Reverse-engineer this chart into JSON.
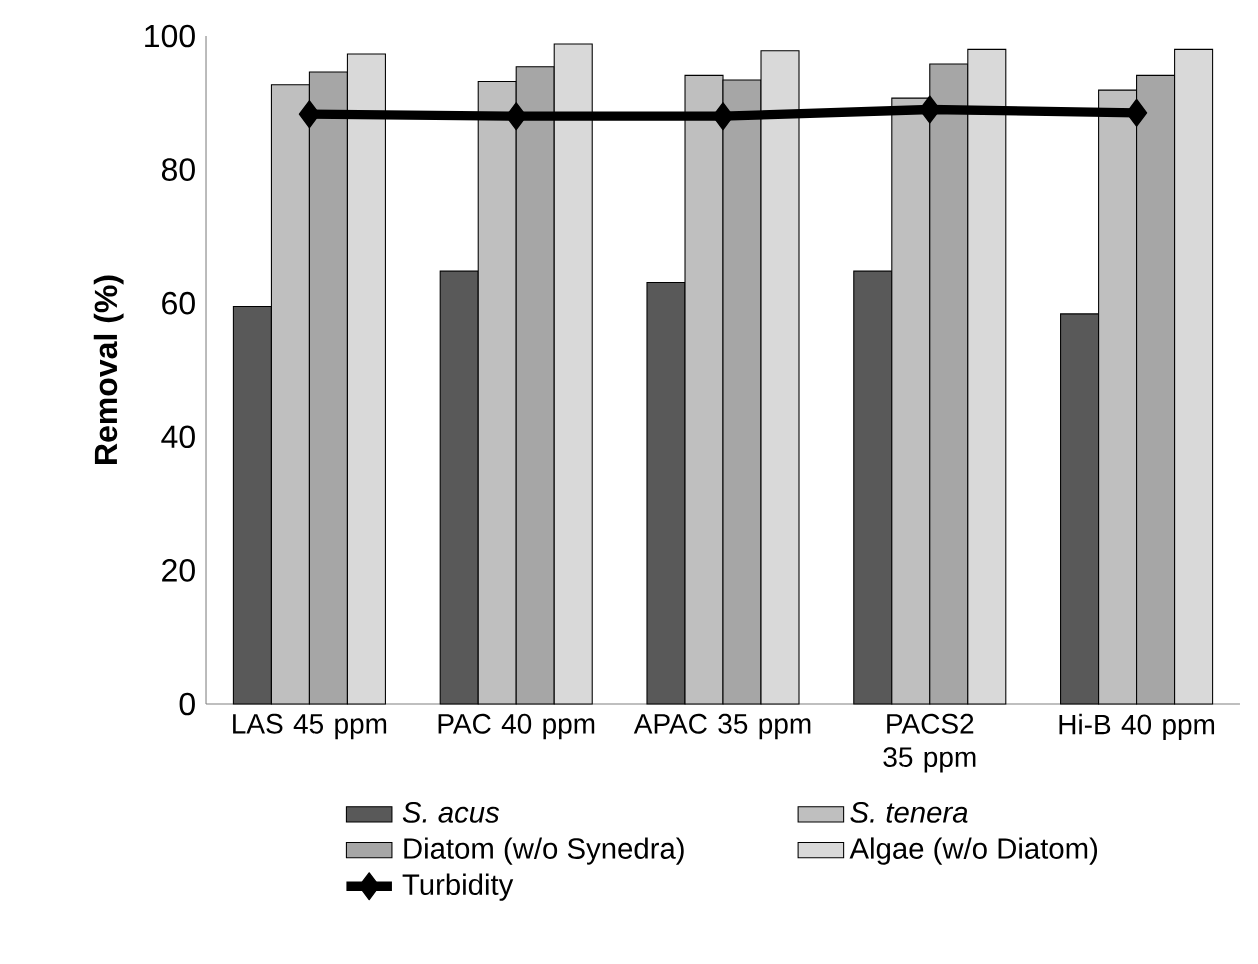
{
  "chart_data": {
    "type": "bar",
    "ylabel": "Removal (%)",
    "categories": [
      "LAS 45 ppm",
      "PAC 40 ppm",
      "APAC 35 ppm",
      "PACS2 35 ppm",
      "Hi-B 40 ppm"
    ],
    "series": [
      {
        "name": "*S. acus*",
        "color": "#595959",
        "values": [
          59.5,
          64.8,
          63.1,
          64.8,
          58.4
        ]
      },
      {
        "name": "*S. tenera*",
        "color": "#bfbfbf",
        "values": [
          92.7,
          93.2,
          94.1,
          90.7,
          91.9
        ]
      },
      {
        "name": "Diatom (w/o Synedra)",
        "color": "#a6a6a6",
        "values": [
          94.6,
          95.4,
          93.4,
          95.8,
          94.1
        ]
      },
      {
        "name": "Algae (w/o Diatom)",
        "color": "#d9d9d9",
        "values": [
          97.3,
          98.8,
          97.8,
          98.0,
          98.0
        ]
      },
      {
        "name": "Turbidity",
        "type": "line",
        "marker": "diamond",
        "color": "#000000",
        "values": [
          88.3,
          88.0,
          88.0,
          89.0,
          88.5
        ]
      }
    ],
    "ylim": [
      0,
      100
    ],
    "yticks": [
      0,
      20,
      40,
      60,
      80,
      100
    ],
    "legend": "bottom"
  }
}
